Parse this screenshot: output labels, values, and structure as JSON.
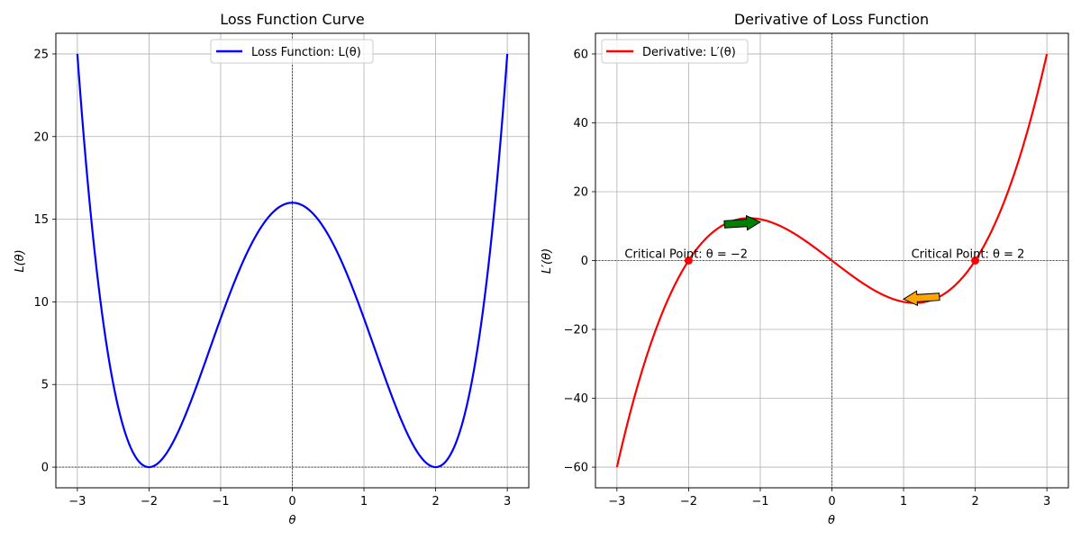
{
  "chart_data": [
    {
      "type": "line",
      "title": "Loss Function Curve",
      "xlabel": "θ",
      "ylabel": "L(θ)",
      "xlim": [
        -3.3,
        3.3
      ],
      "ylim": [
        -1.25,
        26.25
      ],
      "xticks": [
        -3,
        -2,
        -1,
        0,
        1,
        2,
        3
      ],
      "xtick_labels": [
        "−3",
        "−2",
        "−1",
        "0",
        "1",
        "2",
        "3"
      ],
      "yticks": [
        0,
        5,
        10,
        15,
        20,
        25
      ],
      "ytick_labels": [
        "0",
        "5",
        "10",
        "15",
        "20",
        "25"
      ],
      "grid": true,
      "legend_position": "upper center",
      "series": [
        {
          "name": "Loss Function: L(θ)",
          "color": "#0000ff",
          "x": [
            -3.0,
            -2.9,
            -2.8,
            -2.7,
            -2.6,
            -2.5,
            -2.4,
            -2.3,
            -2.2,
            -2.1,
            -2.0,
            -1.9,
            -1.8,
            -1.7,
            -1.6,
            -1.5,
            -1.4,
            -1.3,
            -1.2,
            -1.1,
            -1.0,
            -0.9,
            -0.8,
            -0.7,
            -0.6,
            -0.5,
            -0.4,
            -0.3,
            -0.2,
            -0.1,
            0.0,
            0.1,
            0.2,
            0.3,
            0.4,
            0.5,
            0.6,
            0.7,
            0.8,
            0.9,
            1.0,
            1.1,
            1.2,
            1.3,
            1.4,
            1.5,
            1.6,
            1.7,
            1.8,
            1.9,
            2.0,
            2.1,
            2.2,
            2.3,
            2.4,
            2.5,
            2.6,
            2.7,
            2.8,
            2.9,
            3.0
          ],
          "y": [
            25.0,
            19.4,
            14.6,
            10.6,
            7.3,
            4.8,
            2.8,
            1.4,
            0.5,
            0.1,
            0.0,
            0.2,
            0.6,
            1.2,
            2.0,
            3.1,
            4.2,
            5.4,
            6.8,
            8.1,
            9.0,
            10.9,
            12.1,
            13.3,
            14.1,
            14.1,
            15.4,
            15.7,
            15.8,
            15.9,
            16.0,
            15.9,
            15.8,
            15.7,
            15.4,
            15.1,
            14.6,
            13.3,
            12.4,
            11.2,
            9.0,
            8.1,
            6.8,
            5.4,
            4.2,
            3.1,
            2.0,
            1.2,
            0.6,
            0.2,
            0.0,
            0.1,
            0.5,
            1.4,
            2.8,
            4.8,
            7.3,
            10.6,
            14.6,
            19.4,
            25.0
          ]
        }
      ]
    },
    {
      "type": "line",
      "title": "Derivative of Loss Function",
      "xlabel": "θ",
      "ylabel": "L′(θ)",
      "xlim": [
        -3.3,
        3.3
      ],
      "ylim": [
        -66,
        66
      ],
      "xticks": [
        -3,
        -2,
        -1,
        0,
        1,
        2,
        3
      ],
      "xtick_labels": [
        "−3",
        "−2",
        "−1",
        "0",
        "1",
        "2",
        "3"
      ],
      "yticks": [
        -60,
        -40,
        -20,
        0,
        20,
        40,
        60
      ],
      "ytick_labels": [
        "−60",
        "−40",
        "−20",
        "0",
        "20",
        "40",
        "60"
      ],
      "grid": true,
      "legend_position": "upper left",
      "series": [
        {
          "name": "Derivative: L′(θ)",
          "color": "#ff0000",
          "x": [
            -3.0,
            -2.9,
            -2.8,
            -2.7,
            -2.6,
            -2.5,
            -2.4,
            -2.3,
            -2.2,
            -2.1,
            -2.0,
            -1.9,
            -1.8,
            -1.7,
            -1.6,
            -1.5,
            -1.4,
            -1.3,
            -1.2,
            -1.1,
            -1.0,
            -0.9,
            -0.8,
            -0.7,
            -0.6,
            -0.5,
            -0.4,
            -0.3,
            -0.2,
            -0.1,
            0.0,
            0.1,
            0.2,
            0.3,
            0.4,
            0.5,
            0.6,
            0.7,
            0.8,
            0.9,
            1.0,
            1.1,
            1.2,
            1.3,
            1.4,
            1.5,
            1.6,
            1.7,
            1.8,
            1.9,
            2.0,
            2.1,
            2.2,
            2.3,
            2.4,
            2.5,
            2.6,
            2.7,
            2.8,
            2.9,
            3.0
          ],
          "y": [
            -60.0,
            -51.6,
            -43.8,
            -36.7,
            -30.3,
            -24.5,
            -19.3,
            -14.7,
            -10.6,
            -7.0,
            0.0,
            -1.0,
            1.4,
            3.4,
            5.2,
            6.5,
            7.4,
            8.4,
            9.9,
            10.4,
            12.0,
            11.5,
            11.1,
            10.4,
            9.6,
            7.5,
            6.2,
            4.7,
            3.2,
            1.6,
            0.0,
            -1.6,
            -3.2,
            -4.7,
            -6.2,
            -7.5,
            -9.6,
            -10.4,
            -11.1,
            -11.5,
            -12.0,
            -10.4,
            -9.9,
            -8.4,
            -7.4,
            -6.5,
            -5.2,
            -3.4,
            -1.4,
            1.0,
            0.0,
            7.0,
            10.6,
            14.7,
            19.3,
            24.5,
            30.3,
            36.7,
            43.8,
            51.6,
            60.0
          ]
        }
      ],
      "critical_points": [
        {
          "x": -2,
          "y": 0,
          "label": "Critical Point: θ = −2"
        },
        {
          "x": 2,
          "y": 0,
          "label": "Critical Point: θ = 2"
        }
      ],
      "arrows": [
        {
          "from": [
            -1.5,
            10.5
          ],
          "to": [
            -1.0,
            11.2
          ],
          "color": "#008000"
        },
        {
          "from": [
            1.5,
            -10.5
          ],
          "to": [
            1.0,
            -11.2
          ],
          "color": "#ffa500"
        }
      ]
    }
  ]
}
